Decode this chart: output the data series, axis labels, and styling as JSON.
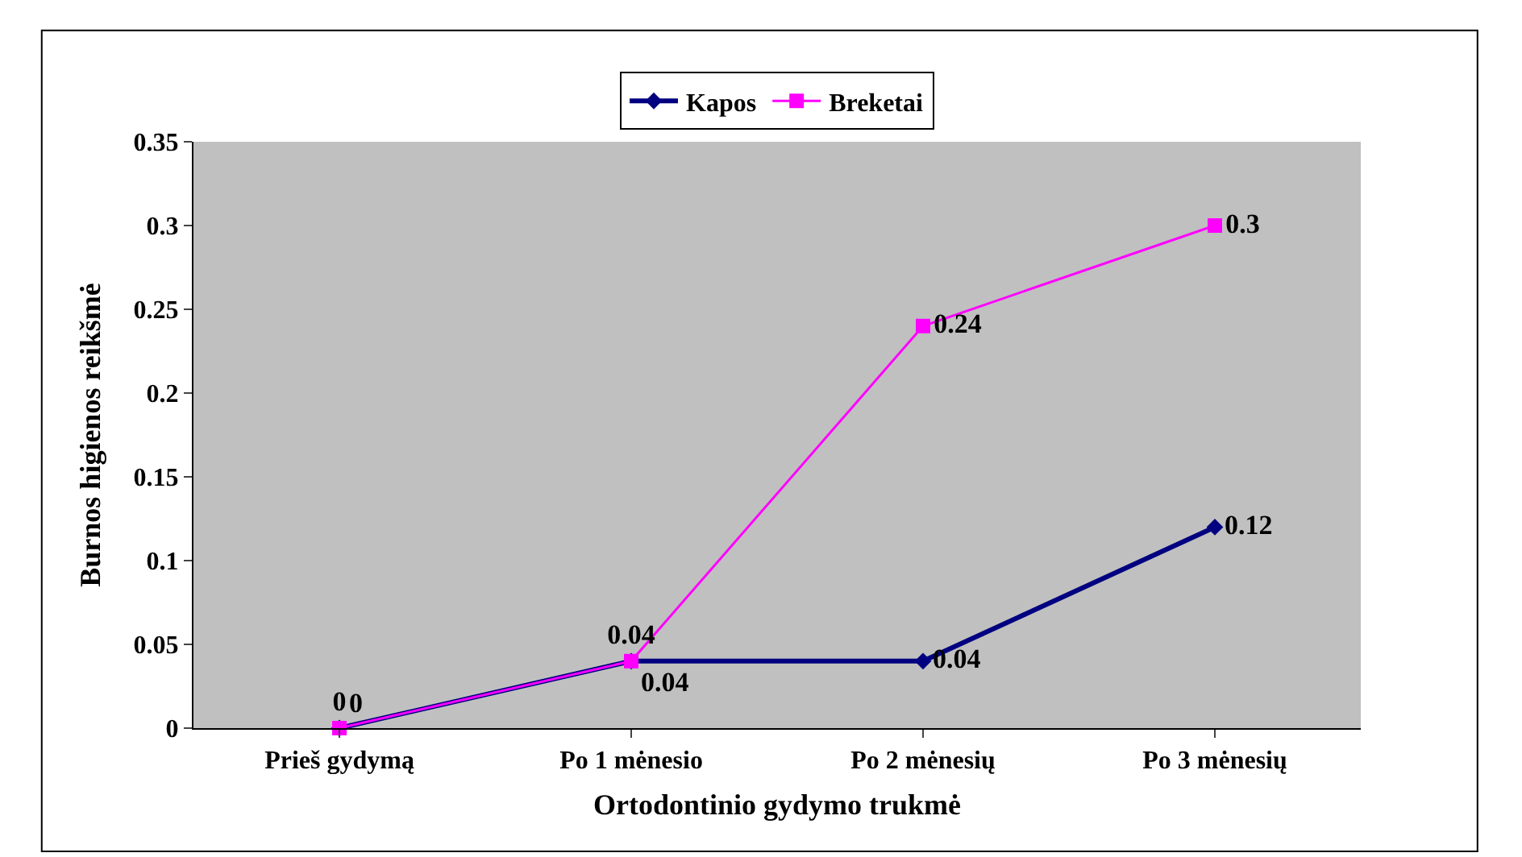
{
  "chart_data": {
    "type": "line",
    "xlabel": "Ortodontinio gydymo trukmė",
    "ylabel": "Burnos higienos reikšmė",
    "categories": [
      "Prieš gydymą",
      "Po 1 mėnesio",
      "Po 2 mėnesių",
      "Po 3 mėnesių"
    ],
    "series": [
      {
        "name": "Kapos",
        "color": "#000080",
        "values": [
          0,
          0.04,
          0.04,
          0.12
        ],
        "marker": "diamond"
      },
      {
        "name": "Breketai",
        "color": "#ff00ff",
        "values": [
          0,
          0.04,
          0.24,
          0.3
        ],
        "marker": "square"
      }
    ],
    "ylim": [
      0,
      0.35
    ],
    "yticks": [
      0,
      0.05,
      0.1,
      0.15,
      0.2,
      0.25,
      0.3,
      0.35
    ],
    "data_labels": true,
    "legend": "top",
    "grid": false,
    "line_style": "solid"
  }
}
